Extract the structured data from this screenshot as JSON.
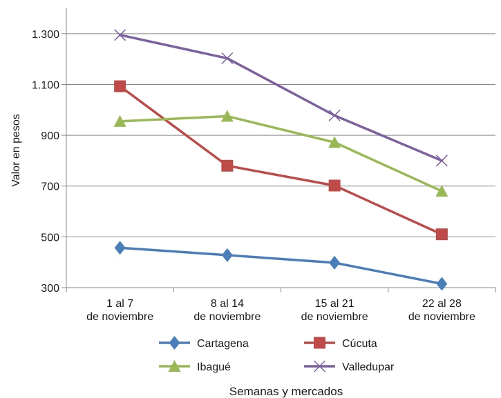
{
  "chart_data": {
    "type": "line",
    "title": "",
    "xlabel": "Semanas y mercados",
    "ylabel": "Valor en pesos",
    "ylim": [
      300,
      1400
    ],
    "yticks": [
      300,
      500,
      700,
      900,
      1100,
      1300
    ],
    "ytick_labels": [
      "300",
      "500",
      "700",
      "900",
      "1.100",
      "1.300"
    ],
    "grid": true,
    "legend_position": "bottom",
    "categories": [
      [
        "1 al 7",
        "de noviembre"
      ],
      [
        "8 al 14",
        "de noviembre"
      ],
      [
        "15 al 21",
        "de noviembre"
      ],
      [
        "22 al 28",
        "de noviembre"
      ]
    ],
    "series": [
      {
        "name": "Cartagena",
        "color": "#4a7ebb",
        "marker": "diamond",
        "values": [
          457,
          428,
          398,
          315
        ]
      },
      {
        "name": "Cúcuta",
        "color": "#be4b48",
        "marker": "square",
        "values": [
          1093,
          780,
          702,
          510
        ]
      },
      {
        "name": "Ibagué",
        "color": "#98b954",
        "marker": "triangle",
        "values": [
          955,
          975,
          872,
          680
        ]
      },
      {
        "name": "Valledupar",
        "color": "#7d60a0",
        "marker": "x",
        "values": [
          1295,
          1203,
          978,
          800
        ]
      }
    ]
  }
}
